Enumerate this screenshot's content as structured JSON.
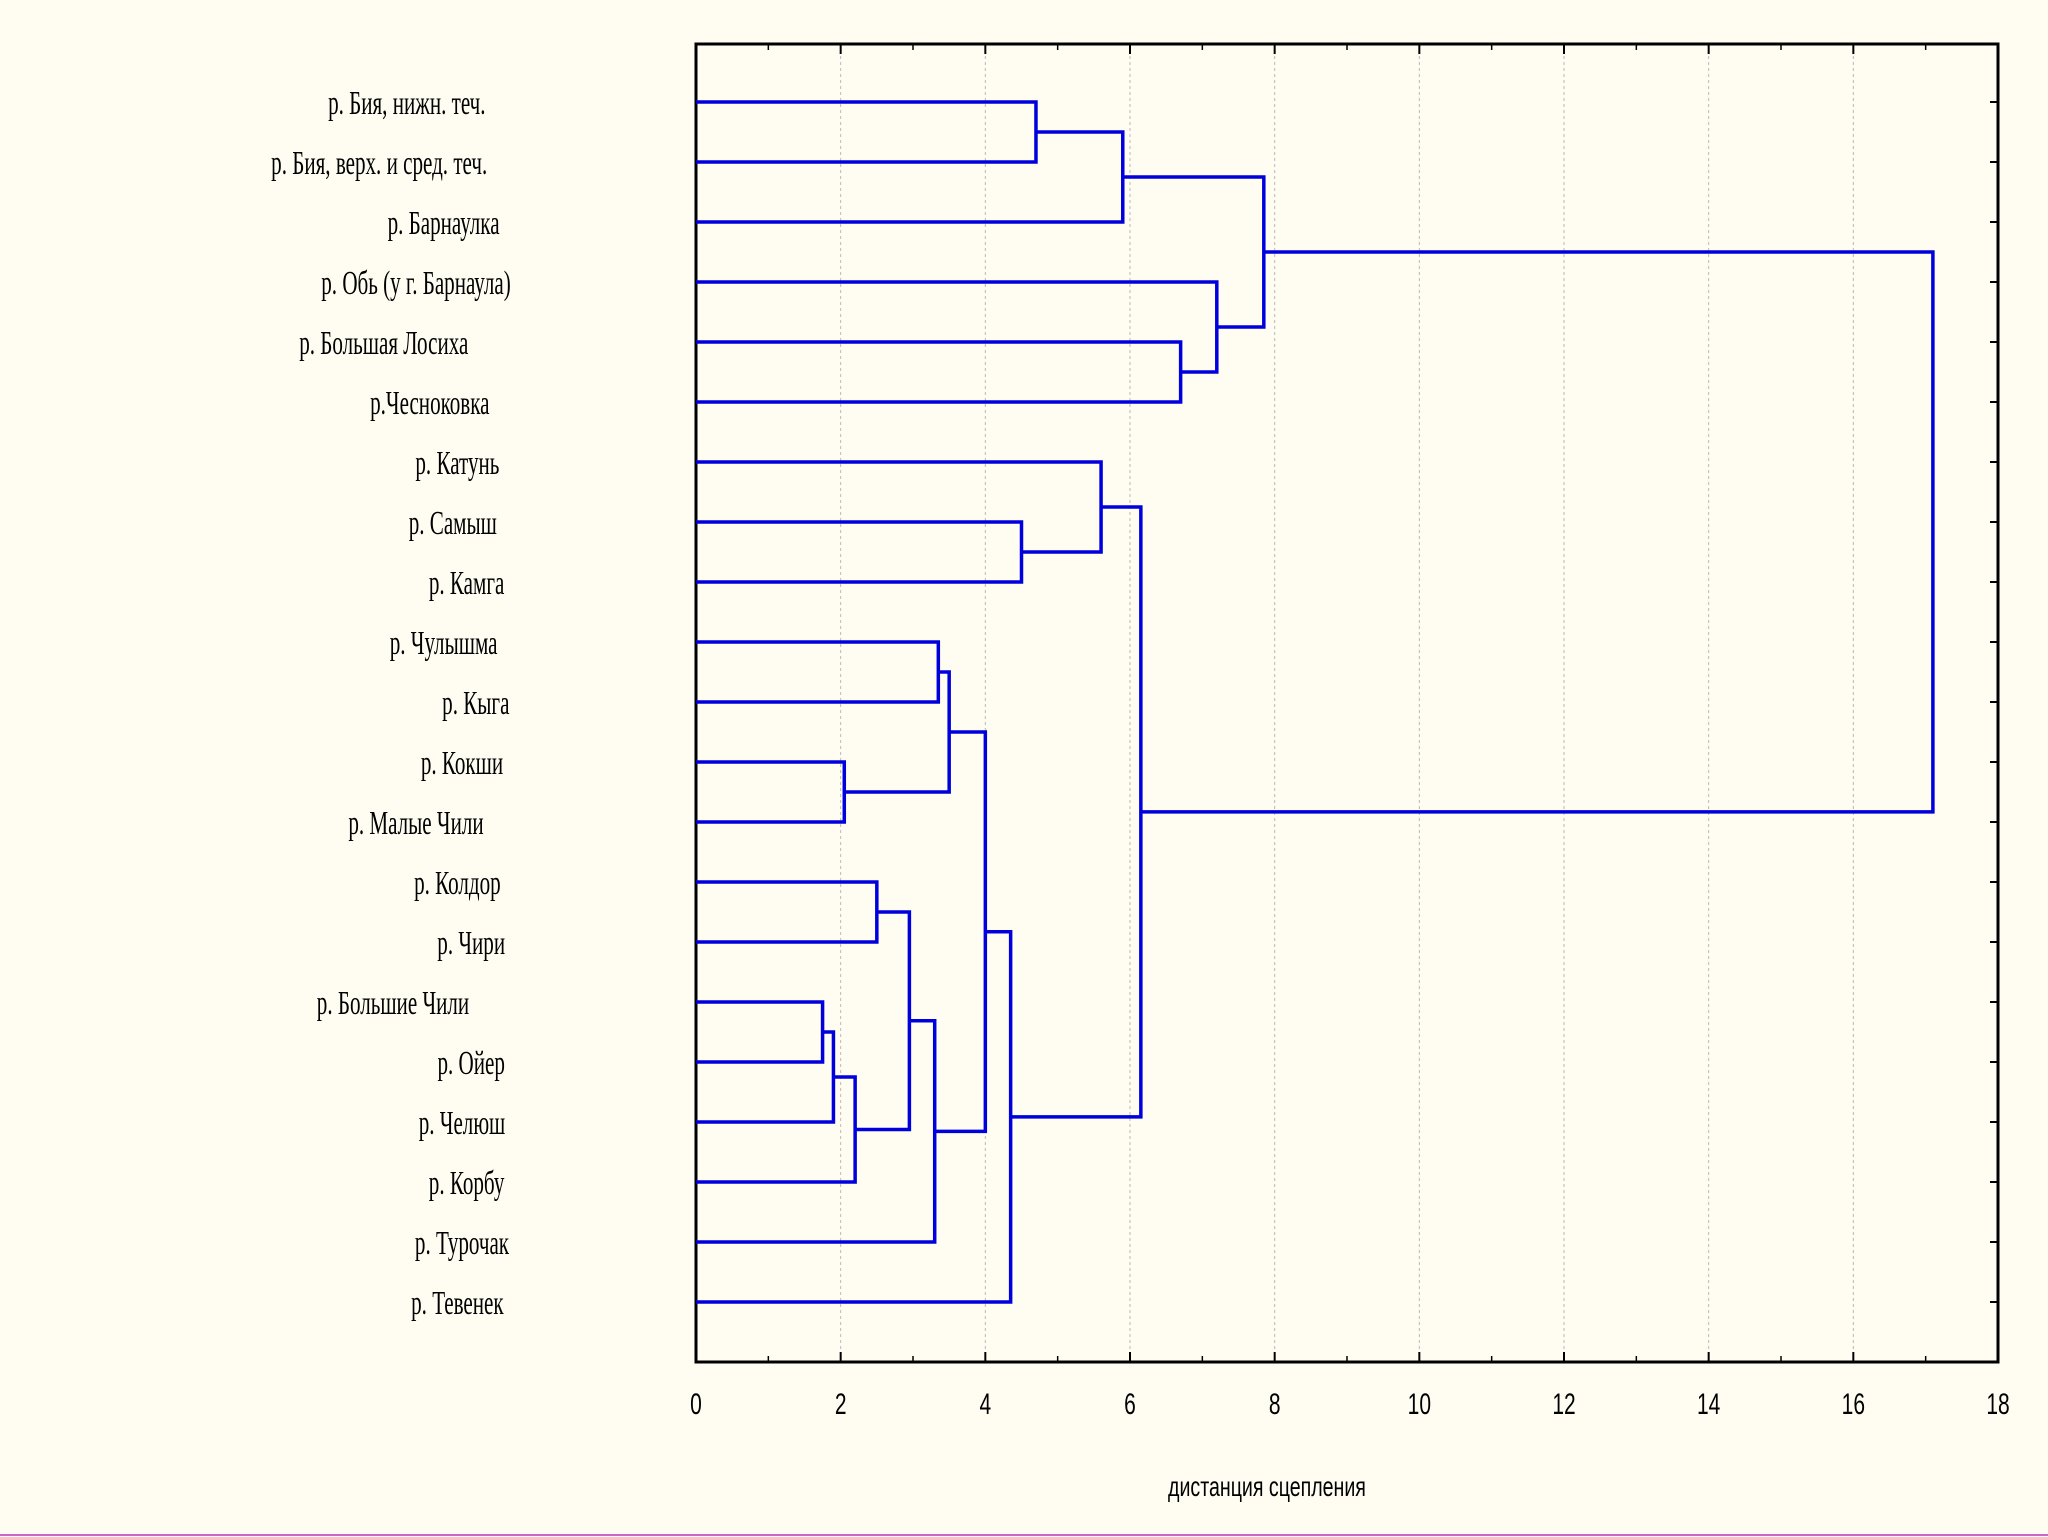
{
  "chart_data": {
    "type": "dendrogram",
    "orientation": "horizontal",
    "xlabel": "дистанция сцепления",
    "xlim": [
      0,
      18
    ],
    "xticks": [
      0,
      2,
      4,
      6,
      8,
      10,
      12,
      14,
      16,
      18
    ],
    "grid": "vertical dotted",
    "line_color": "#0000dd",
    "leaves": [
      "р. Бия, нижн. теч.",
      "р. Бия, верх. и сред. теч.",
      "р. Барнаулка",
      "р. Обь (у г. Барнаула)",
      "р. Большая Лосиха",
      "р.Чесноковка",
      "р. Катунь",
      "р. Самыш",
      "р. Камга",
      "р. Чулышма",
      "р. Кыга",
      "р. Кокши",
      "р. Малые Чили",
      "р. Колдор",
      "р. Чири",
      "р. Большие Чили",
      "р. Ойер",
      "р. Челюш",
      "р. Корбу",
      "р. Турочак",
      "р. Тевенек"
    ],
    "merges": [
      {
        "left": "L0",
        "right": "L1",
        "height": 4.7
      },
      {
        "left": "M0",
        "right": "L2",
        "height": 5.9
      },
      {
        "left": "L4",
        "right": "L5",
        "height": 6.7
      },
      {
        "left": "L3",
        "right": "M2",
        "height": 7.2
      },
      {
        "left": "M1",
        "right": "M3",
        "height": 7.85
      },
      {
        "left": "L7",
        "right": "L8",
        "height": 4.5
      },
      {
        "left": "L6",
        "right": "M5",
        "height": 5.6
      },
      {
        "left": "L9",
        "right": "L10",
        "height": 3.35
      },
      {
        "left": "L11",
        "right": "L12",
        "height": 2.05
      },
      {
        "left": "M7",
        "right": "M8",
        "height": 3.5
      },
      {
        "left": "L13",
        "right": "L14",
        "height": 2.5
      },
      {
        "left": "L15",
        "right": "L16",
        "height": 1.75
      },
      {
        "left": "M11",
        "right": "L17",
        "height": 1.9
      },
      {
        "left": "M12",
        "right": "L18",
        "height": 2.2
      },
      {
        "left": "M10",
        "right": "M13",
        "height": 2.95
      },
      {
        "left": "M14",
        "right": "L19",
        "height": 3.3
      },
      {
        "left": "M9",
        "right": "M15",
        "height": 4.0
      },
      {
        "left": "M16",
        "right": "L20",
        "height": 4.35
      },
      {
        "left": "M6",
        "right": "M17",
        "height": 6.15
      },
      {
        "left": "M4",
        "right": "M18",
        "height": 17.1
      }
    ]
  }
}
